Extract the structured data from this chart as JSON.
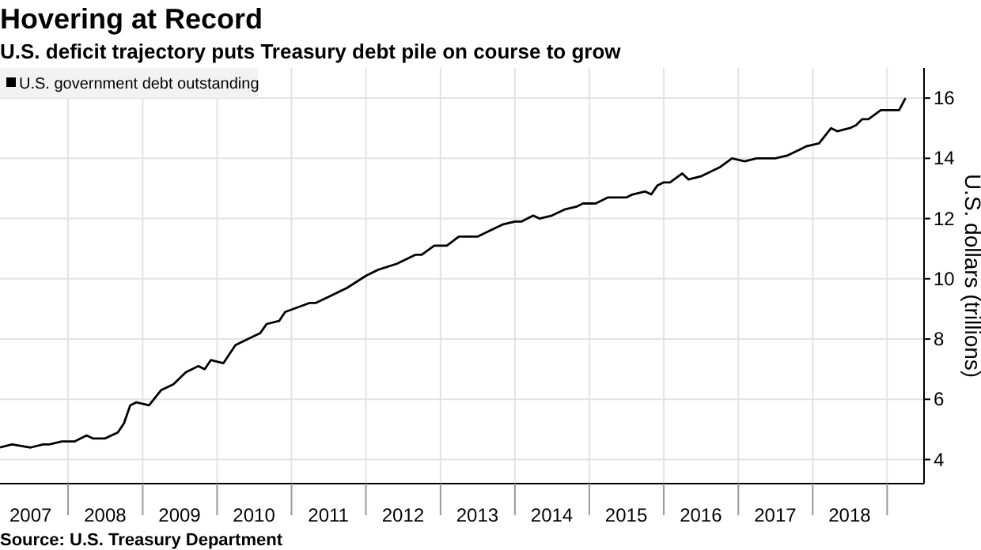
{
  "chart_data": {
    "type": "line",
    "title": "Hovering at Record",
    "subtitle": "U.S. deficit trajectory puts Treasury debt pile on course to grow",
    "ylabel": "U.S. dollars (trillions)",
    "annotations": [
      "Source: U.S. Treasury Department"
    ],
    "x": [
      "2007-02",
      "2007-04",
      "2007-07",
      "2007-09",
      "2007-10",
      "2007-12",
      "2008-02",
      "2008-04",
      "2008-05",
      "2008-07",
      "2008-09",
      "2008-10",
      "2008-11",
      "2008-12",
      "2009-02",
      "2009-04",
      "2009-06",
      "2009-08",
      "2009-10",
      "2009-11",
      "2009-12",
      "2010-02",
      "2010-04",
      "2010-06",
      "2010-08",
      "2010-09",
      "2010-11",
      "2010-12",
      "2011-04",
      "2011-05",
      "2011-07",
      "2011-10",
      "2012-01",
      "2012-03",
      "2012-06",
      "2012-07",
      "2012-09",
      "2012-10",
      "2012-12",
      "2013-02",
      "2013-04",
      "2013-07",
      "2013-09",
      "2013-11",
      "2014-01",
      "2014-02",
      "2014-04",
      "2014-05",
      "2014-07",
      "2014-09",
      "2014-11",
      "2014-12",
      "2015-02",
      "2015-04",
      "2015-07",
      "2015-08",
      "2015-10",
      "2015-11",
      "2015-12",
      "2016-01",
      "2016-02",
      "2016-04",
      "2016-05",
      "2016-07",
      "2016-09",
      "2016-10",
      "2016-12",
      "2017-02",
      "2017-04",
      "2017-05",
      "2017-07",
      "2017-09",
      "2017-11",
      "2017-12",
      "2018-02",
      "2018-04",
      "2018-05",
      "2018-07",
      "2018-08",
      "2018-09",
      "2018-10",
      "2018-12",
      "2019-02",
      "2019-03",
      "2019-04"
    ],
    "series": [
      {
        "name": "U.S. government debt outstanding",
        "color": "#000000",
        "values": [
          4.4,
          4.5,
          4.4,
          4.5,
          4.5,
          4.6,
          4.6,
          4.8,
          4.7,
          4.7,
          4.9,
          5.2,
          5.8,
          5.9,
          5.8,
          6.3,
          6.5,
          6.9,
          7.1,
          7.0,
          7.3,
          7.2,
          7.8,
          8.0,
          8.2,
          8.5,
          8.6,
          8.9,
          9.2,
          9.2,
          9.4,
          9.7,
          10.1,
          10.3,
          10.5,
          10.6,
          10.8,
          10.8,
          11.1,
          11.1,
          11.4,
          11.4,
          11.6,
          11.8,
          11.9,
          11.9,
          12.1,
          12.0,
          12.1,
          12.3,
          12.4,
          12.5,
          12.5,
          12.7,
          12.7,
          12.8,
          12.9,
          12.8,
          13.1,
          13.2,
          13.2,
          13.5,
          13.3,
          13.4,
          13.6,
          13.7,
          14.0,
          13.9,
          14.0,
          14.0,
          14.0,
          14.1,
          14.3,
          14.4,
          14.5,
          15.0,
          14.9,
          15.0,
          15.1,
          15.3,
          15.3,
          15.6,
          15.6,
          15.6,
          16.0
        ]
      }
    ],
    "xlim": [
      "2007-02-01",
      "2019-07-01"
    ],
    "xticks": [
      {
        "value": "2007-07-01",
        "label": "2007"
      },
      {
        "value": "2008-07-01",
        "label": "2008"
      },
      {
        "value": "2009-07-01",
        "label": "2009"
      },
      {
        "value": "2010-07-01",
        "label": "2010"
      },
      {
        "value": "2011-07-01",
        "label": "2011"
      },
      {
        "value": "2012-07-01",
        "label": "2012"
      },
      {
        "value": "2013-07-01",
        "label": "2013"
      },
      {
        "value": "2014-07-01",
        "label": "2014"
      },
      {
        "value": "2015-07-01",
        "label": "2015"
      },
      {
        "value": "2016-07-01",
        "label": "2016"
      },
      {
        "value": "2017-07-01",
        "label": "2017"
      },
      {
        "value": "2018-07-01",
        "label": "2018"
      },
      {
        "value": "2008-01-01",
        "label": null
      },
      {
        "value": "2009-01-01",
        "label": null
      },
      {
        "value": "2010-01-01",
        "label": null
      },
      {
        "value": "2011-01-01",
        "label": null
      },
      {
        "value": "2012-01-01",
        "label": null
      },
      {
        "value": "2013-01-01",
        "label": null
      },
      {
        "value": "2014-01-01",
        "label": null
      },
      {
        "value": "2015-01-01",
        "label": null
      },
      {
        "value": "2016-01-01",
        "label": null
      },
      {
        "value": "2017-01-01",
        "label": null
      },
      {
        "value": "2018-01-01",
        "label": null
      },
      {
        "value": "2019-01-01",
        "label": null
      }
    ],
    "ylim": [
      3.2,
      17
    ],
    "yticks": [
      4,
      6,
      8,
      10,
      12,
      14,
      16
    ],
    "grid": true,
    "legend": "top left",
    "line_style": "solid",
    "marker": "none"
  }
}
